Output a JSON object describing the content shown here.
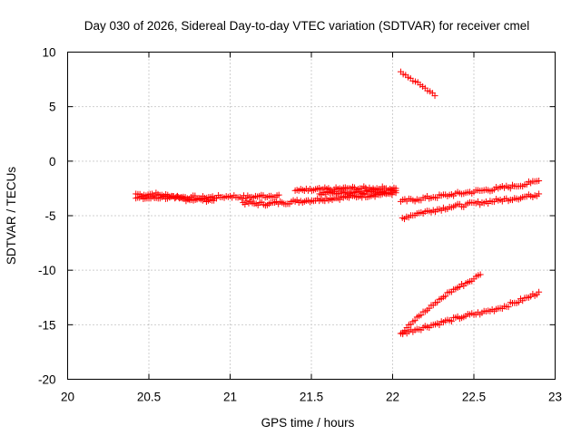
{
  "chart_data": {
    "type": "scatter",
    "title": "Day 030 of 2026, Sidereal Day-to-day VTEC variation (SDTVAR) for receiver cmel",
    "xlabel": "GPS time / hours",
    "ylabel": "SDTVAR / TECUs",
    "xlim": [
      20,
      23
    ],
    "ylim": [
      -20,
      10
    ],
    "xticks": [
      "20",
      "20.5",
      "21",
      "21.5",
      "22",
      "22.5",
      "23"
    ],
    "yticks": [
      "10",
      "5",
      "0",
      "-5",
      "-10",
      "-15",
      "-20"
    ],
    "grid": true,
    "marker": "+",
    "color": "#ff0000",
    "series": [
      {
        "name": "track-1",
        "x": [
          20.42,
          20.47,
          20.52,
          20.58,
          20.64,
          20.7,
          20.76,
          20.82,
          20.88,
          20.94,
          21.0,
          21.06,
          21.12,
          21.18,
          21.24,
          21.3
        ],
        "y": [
          -3.0,
          -3.1,
          -3.0,
          -3.1,
          -3.2,
          -3.3,
          -3.3,
          -3.4,
          -3.3,
          -3.3,
          -3.2,
          -3.3,
          -3.3,
          -3.2,
          -3.2,
          -3.1
        ]
      },
      {
        "name": "track-2",
        "x": [
          20.42,
          20.5,
          20.58,
          20.66,
          20.74,
          20.82,
          20.9
        ],
        "y": [
          -3.4,
          -3.4,
          -3.3,
          -3.4,
          -3.5,
          -3.5,
          -3.6
        ]
      },
      {
        "name": "track-3",
        "x": [
          21.08,
          21.16,
          21.24,
          21.32,
          21.4,
          21.48,
          21.56,
          21.64,
          21.72,
          21.8,
          21.88,
          21.96,
          22.02
        ],
        "y": [
          -3.8,
          -3.9,
          -3.9,
          -3.8,
          -3.7,
          -3.6,
          -3.5,
          -3.4,
          -3.3,
          -3.2,
          -3.1,
          -3.0,
          -2.9
        ]
      },
      {
        "name": "track-4",
        "x": [
          21.4,
          21.48,
          21.56,
          21.64,
          21.72,
          21.8,
          21.88,
          21.96,
          22.02
        ],
        "y": [
          -2.7,
          -2.7,
          -2.6,
          -2.6,
          -2.5,
          -2.5,
          -2.5,
          -2.5,
          -2.5
        ]
      },
      {
        "name": "track-5",
        "x": [
          21.55,
          21.62,
          21.7,
          21.78,
          21.86,
          21.94,
          22.02
        ],
        "y": [
          -3.0,
          -2.9,
          -2.9,
          -2.8,
          -2.8,
          -2.8,
          -2.7
        ]
      },
      {
        "name": "track-6",
        "x": [
          22.05,
          22.08,
          22.11,
          22.14,
          22.17,
          22.2,
          22.23,
          22.26
        ],
        "y": [
          8.2,
          7.9,
          7.6,
          7.3,
          7.0,
          6.7,
          6.4,
          6.0
        ]
      },
      {
        "name": "track-7",
        "x": [
          22.05,
          22.15,
          22.25,
          22.35,
          22.45,
          22.55,
          22.65,
          22.75,
          22.85,
          22.9
        ],
        "y": [
          -3.7,
          -3.5,
          -3.3,
          -3.1,
          -2.9,
          -2.7,
          -2.5,
          -2.3,
          -2.0,
          -1.8
        ]
      },
      {
        "name": "track-8",
        "x": [
          22.06,
          22.15,
          22.25,
          22.35,
          22.45,
          22.55,
          22.65,
          22.75,
          22.85,
          22.9
        ],
        "y": [
          -5.2,
          -4.8,
          -4.5,
          -4.2,
          -4.0,
          -3.8,
          -3.6,
          -3.4,
          -3.2,
          -3.0
        ]
      },
      {
        "name": "track-9",
        "x": [
          22.05,
          22.1,
          22.15,
          22.2,
          22.25,
          22.3,
          22.35,
          22.4,
          22.45,
          22.5,
          22.54
        ],
        "y": [
          -15.8,
          -15.0,
          -14.3,
          -13.8,
          -13.2,
          -12.6,
          -12.0,
          -11.6,
          -11.2,
          -10.8,
          -10.4
        ]
      },
      {
        "name": "track-10",
        "x": [
          22.05,
          22.15,
          22.25,
          22.35,
          22.45,
          22.55,
          22.65,
          22.75,
          22.85,
          22.9
        ],
        "y": [
          -15.8,
          -15.4,
          -15.0,
          -14.6,
          -14.2,
          -13.9,
          -13.5,
          -13.0,
          -12.4,
          -12.0
        ]
      }
    ]
  }
}
